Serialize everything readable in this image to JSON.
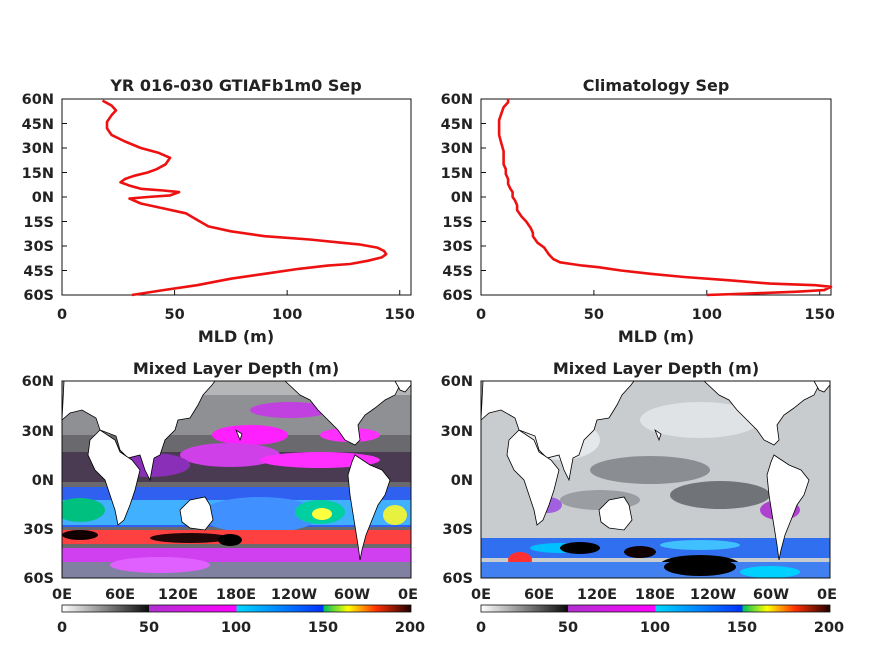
{
  "colors": {
    "profile_line": "#ee1111",
    "land": "#ffffff",
    "coast": "#000000"
  },
  "chart_data": [
    {
      "type": "line",
      "title": "YR 016-030 GTIAFb1m0 Sep",
      "xlabel": "MLD (m)",
      "xlim": [
        0,
        155
      ],
      "ylim": [
        -60,
        60
      ],
      "xticks": [
        "0",
        "50",
        "100",
        "150"
      ],
      "yticks": [
        "60N",
        "45N",
        "30N",
        "15N",
        "0N",
        "15S",
        "30S",
        "45S",
        "60S"
      ],
      "series": [
        {
          "x": [
            31,
            45,
            60,
            75,
            90,
            105,
            118,
            128,
            136,
            142,
            144,
            143,
            140,
            132,
            124,
            110,
            90,
            75,
            65,
            60,
            55,
            45,
            35,
            30,
            38,
            48,
            52,
            45,
            35,
            30,
            26,
            28,
            32,
            38,
            42,
            46,
            48,
            43,
            35,
            28,
            22,
            20,
            20,
            22,
            24,
            22,
            18
          ],
          "y": [
            -60,
            -57,
            -54,
            -50,
            -47,
            -44,
            -42,
            -41,
            -39,
            -37,
            -35,
            -33,
            -31,
            -29,
            -28,
            -26,
            -24,
            -21,
            -18,
            -14,
            -10,
            -7,
            -4,
            -1,
            0,
            1,
            3,
            4,
            5,
            7,
            9,
            11,
            13,
            15,
            17,
            20,
            24,
            27,
            30,
            34,
            38,
            42,
            46,
            50,
            53,
            56,
            59
          ]
        }
      ]
    },
    {
      "type": "line",
      "title": "Climatology Sep",
      "xlabel": "MLD (m)",
      "xlim": [
        0,
        155
      ],
      "ylim": [
        -60,
        60
      ],
      "xticks": [
        "0",
        "50",
        "100",
        "150"
      ],
      "yticks": [
        "60N",
        "45N",
        "30N",
        "15N",
        "0N",
        "15S",
        "30S",
        "45S",
        "60S"
      ],
      "series": [
        {
          "x": [
            100,
            120,
            140,
            152,
            155,
            148,
            128,
            110,
            90,
            75,
            62,
            52,
            45,
            40,
            35,
            32,
            30,
            28,
            25,
            23,
            23,
            22,
            20,
            18,
            16,
            16,
            15,
            14,
            14,
            13,
            12,
            12,
            11,
            11,
            10,
            10,
            10,
            9,
            8,
            8,
            8,
            9,
            10,
            12,
            12
          ],
          "y": [
            -60,
            -59,
            -58,
            -57,
            -55,
            -54,
            -53,
            -51,
            -49,
            -47,
            -45,
            -43,
            -42,
            -41,
            -40,
            -38,
            -35,
            -31,
            -28,
            -24,
            -22,
            -19,
            -15,
            -12,
            -8,
            -5,
            -2,
            0,
            3,
            5,
            8,
            11,
            14,
            17,
            20,
            24,
            28,
            33,
            38,
            43,
            47,
            51,
            55,
            58,
            60
          ]
        }
      ]
    },
    {
      "type": "heatmap",
      "title": "Mixed Layer Depth (m)",
      "xticks": [
        "0E",
        "60E",
        "120E",
        "180E",
        "120W",
        "60W",
        "0E"
      ],
      "yticks": [
        "60N",
        "30N",
        "0N",
        "30S",
        "60S"
      ],
      "colorbar": {
        "ticks": [
          "0",
          "50",
          "100",
          "150",
          "200"
        ],
        "range": [
          0,
          200
        ]
      }
    },
    {
      "type": "heatmap",
      "title": "Mixed Layer Depth (m)",
      "xticks": [
        "0E",
        "60E",
        "120E",
        "180E",
        "120W",
        "60W",
        "0E"
      ],
      "yticks": [
        "60N",
        "30N",
        "0N",
        "30S",
        "60S"
      ],
      "colorbar": {
        "ticks": [
          "0",
          "50",
          "100",
          "150",
          "200"
        ],
        "range": [
          0,
          200
        ]
      }
    }
  ]
}
